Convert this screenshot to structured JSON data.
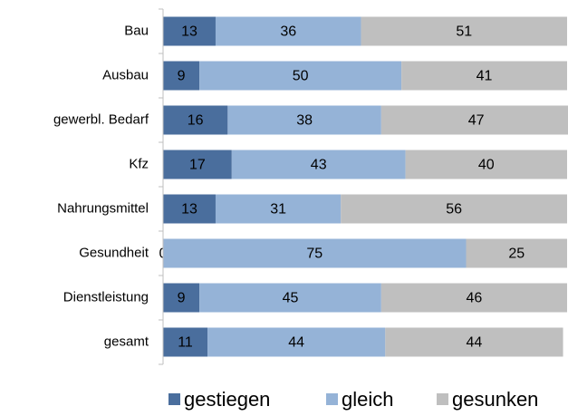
{
  "chart_data": {
    "type": "stacked_barh",
    "categories": [
      "Bau",
      "Ausbau",
      "gewerbl. Bedarf",
      "Kfz",
      "Nahrungsmittel",
      "Gesundheit",
      "Dienstleistung",
      "gesamt"
    ],
    "series": [
      {
        "name": "gestiegen",
        "color": "#4a6e9d",
        "values": [
          13,
          9,
          16,
          17,
          13,
          0,
          9,
          11
        ]
      },
      {
        "name": "gleich",
        "color": "#95b3d7",
        "values": [
          36,
          50,
          38,
          43,
          31,
          75,
          45,
          44
        ]
      },
      {
        "name": "gesunken",
        "color": "#bfbfbf",
        "values": [
          51,
          41,
          47,
          40,
          56,
          25,
          46,
          44
        ]
      }
    ],
    "xlim": [
      0,
      100
    ],
    "legend": "bottom"
  }
}
